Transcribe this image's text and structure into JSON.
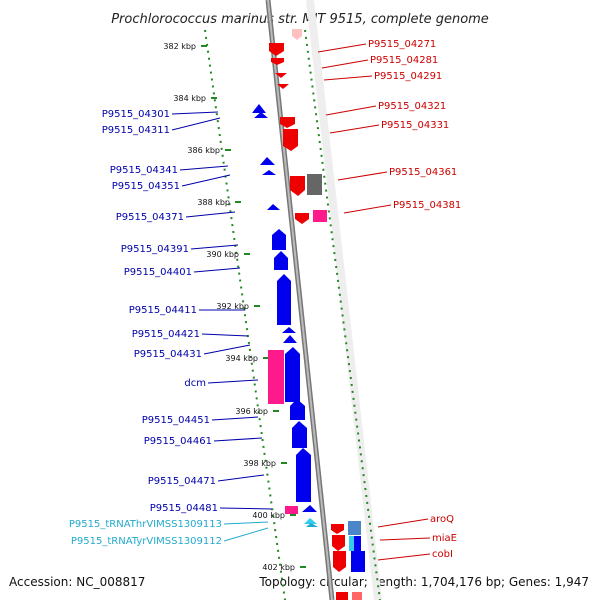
{
  "title": "Prochlorococcus marinus str. MIT 9515, complete genome",
  "footer": {
    "accession": "Accession: NC_008817",
    "summary": "Topology: circular; Length: 1,704,176 bp; Genes: 1,947"
  },
  "colors": {
    "forward_gene": "#ff0000",
    "reverse_gene": "#0000ff",
    "rrna_like": "#ff1a8c",
    "pseudo": "#666666",
    "trna": "#33ccee",
    "backbone": "#999999",
    "tick": "#228822"
  },
  "kbp_ticks": [
    "382 kbp",
    "384 kbp",
    "386 kbp",
    "388 kbp",
    "390 kbp",
    "392 kbp",
    "394 kbp",
    "396 kbp",
    "398 kbp",
    "400 kbp",
    "402 kbp"
  ],
  "left_labels": [
    {
      "text": "P9515_04301",
      "color": "#0000aa"
    },
    {
      "text": "P9515_04311",
      "color": "#0000aa"
    },
    {
      "text": "P9515_04341",
      "color": "#0000aa"
    },
    {
      "text": "P9515_04351",
      "color": "#0000aa"
    },
    {
      "text": "P9515_04371",
      "color": "#0000aa"
    },
    {
      "text": "P9515_04391",
      "color": "#0000aa"
    },
    {
      "text": "P9515_04401",
      "color": "#0000aa"
    },
    {
      "text": "P9515_04411",
      "color": "#0000aa"
    },
    {
      "text": "P9515_04421",
      "color": "#0000aa"
    },
    {
      "text": "P9515_04431",
      "color": "#0000aa"
    },
    {
      "text": "dcm",
      "color": "#0000aa"
    },
    {
      "text": "P9515_04451",
      "color": "#0000aa"
    },
    {
      "text": "P9515_04461",
      "color": "#0000aa"
    },
    {
      "text": "P9515_04471",
      "color": "#0000aa"
    },
    {
      "text": "P9515_04481",
      "color": "#0000aa"
    },
    {
      "text": "P9515_tRNAThrVIMSS1309113",
      "color": "#22aacc"
    },
    {
      "text": "P9515_tRNATyrVIMSS1309112",
      "color": "#22aacc"
    }
  ],
  "right_labels": [
    {
      "text": "P9515_04271",
      "color": "#cc0000"
    },
    {
      "text": "P9515_04281",
      "color": "#cc0000"
    },
    {
      "text": "P9515_04291",
      "color": "#cc0000"
    },
    {
      "text": "P9515_04321",
      "color": "#cc0000"
    },
    {
      "text": "P9515_04331",
      "color": "#cc0000"
    },
    {
      "text": "P9515_04361",
      "color": "#cc0000"
    },
    {
      "text": "P9515_04381",
      "color": "#cc0000"
    },
    {
      "text": "aroQ",
      "color": "#cc0000"
    },
    {
      "text": "miaE",
      "color": "#cc0000"
    },
    {
      "text": "cobI",
      "color": "#cc0000"
    }
  ]
}
